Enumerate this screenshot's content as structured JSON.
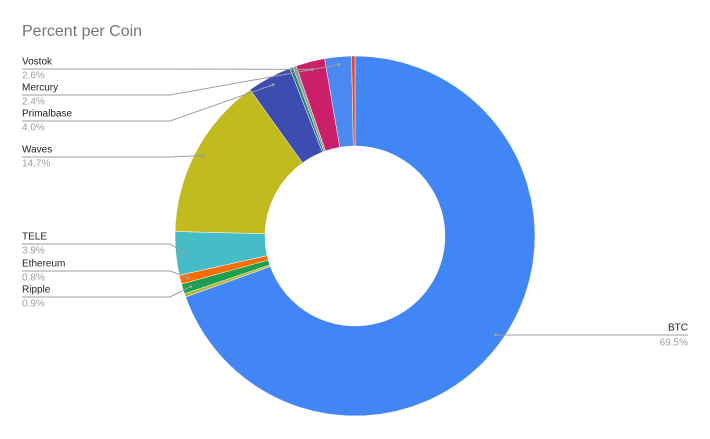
{
  "chart_data": {
    "type": "donut",
    "title": "Percent per Coin",
    "categories": [
      "BTC",
      null,
      "Ripple",
      "Ethereum",
      "TELE",
      "Waves",
      "Primalbase",
      null,
      null,
      "Vostok",
      "Mercury",
      null
    ],
    "values": [
      69.5,
      0.3,
      0.9,
      0.8,
      3.9,
      14.7,
      4.0,
      0.3,
      0.3,
      2.6,
      2.4,
      0.3
    ],
    "value_labels": [
      "69.5%",
      null,
      "0.9%",
      "0.8%",
      "3.9%",
      "14.7%",
      "4.0%",
      null,
      null,
      "2.6%",
      "2.4%",
      null
    ],
    "colors": [
      "#4285f4",
      "#b5b52a",
      "#1e9e4f",
      "#ff6d01",
      "#46bdc6",
      "#c2bb1f",
      "#3c4cb0",
      "#2a7f7a",
      "#8f9e9a",
      "#cc1f6a",
      "#4a8af0",
      "#d9453d"
    ]
  }
}
